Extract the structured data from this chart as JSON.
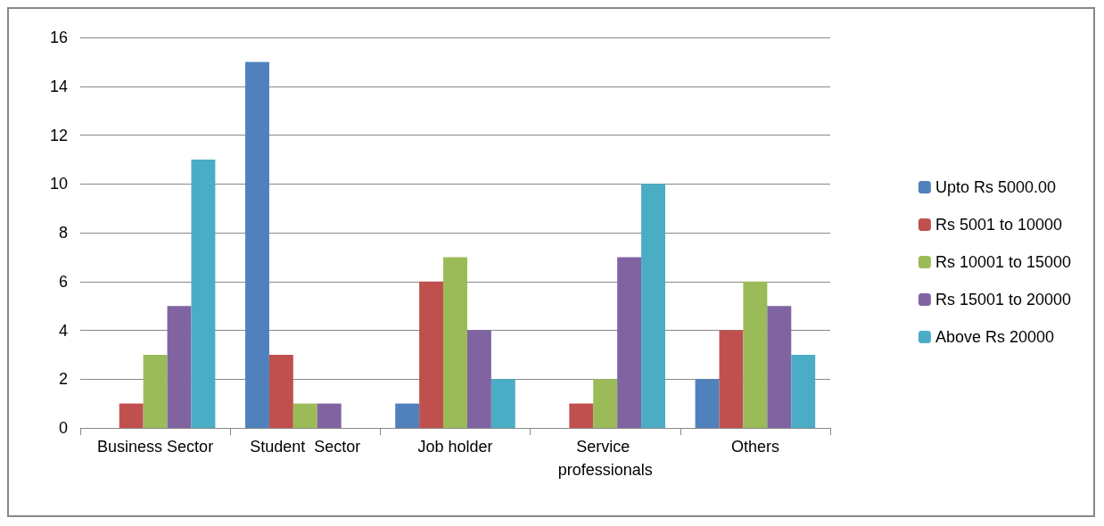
{
  "chart_data": {
    "type": "bar",
    "categories": [
      "Business Sector",
      "Student  Sector",
      "Job holder",
      "Service professionals",
      "Others"
    ],
    "series": [
      {
        "name": "Upto Rs 5000.00",
        "color": "#4f81bd",
        "values": [
          0,
          15,
          1,
          0,
          2
        ]
      },
      {
        "name": "Rs 5001 to 10000",
        "color": "#c0504d",
        "values": [
          1,
          3,
          6,
          1,
          4
        ]
      },
      {
        "name": "Rs 10001 to 15000",
        "color": "#9bbb59",
        "values": [
          3,
          1,
          7,
          2,
          6
        ]
      },
      {
        "name": "Rs 15001 to 20000",
        "color": "#8064a2",
        "values": [
          5,
          1,
          4,
          7,
          5
        ]
      },
      {
        "name": "Above Rs 20000",
        "color": "#4bacc6",
        "values": [
          11,
          0,
          2,
          10,
          3
        ]
      }
    ],
    "ylim": [
      0,
      16
    ],
    "yticks": [
      0,
      2,
      4,
      6,
      8,
      10,
      12,
      14,
      16
    ],
    "grid": "y",
    "legend": "right"
  }
}
